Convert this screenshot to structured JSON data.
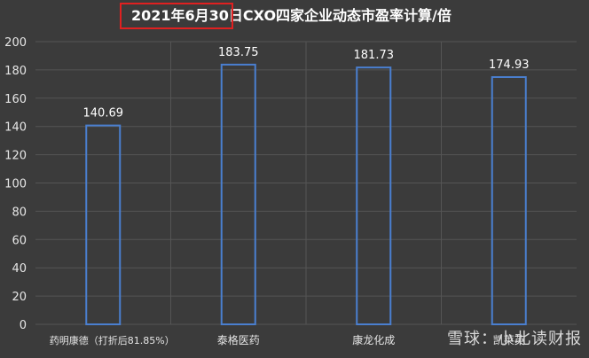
{
  "chart_data": {
    "type": "bar",
    "title": "2021年6月30日CXO四家企业动态市盈率计算/倍",
    "categories": [
      "药明康德（打折后81.85%）",
      "泰格医药",
      "康龙化成",
      "凯莱英"
    ],
    "values": [
      140.69,
      183.75,
      181.73,
      174.93
    ],
    "data_labels": [
      "140.69",
      "183.75",
      "181.73",
      "174.93"
    ],
    "ylim": [
      0,
      200
    ],
    "yticks": [
      "0",
      "20",
      "40",
      "60",
      "80",
      "100",
      "120",
      "140",
      "160",
      "180",
      "200"
    ],
    "grid": true,
    "bar_style": "outline",
    "colors": {
      "background": "#3b3b3b",
      "bar_stroke": "#4a7fd0",
      "grid": "#555555",
      "text": "#ffffff",
      "axis_text": "#e6e6e6",
      "highlight": "#e02020"
    }
  },
  "watermark": "雪球：小北读财报"
}
